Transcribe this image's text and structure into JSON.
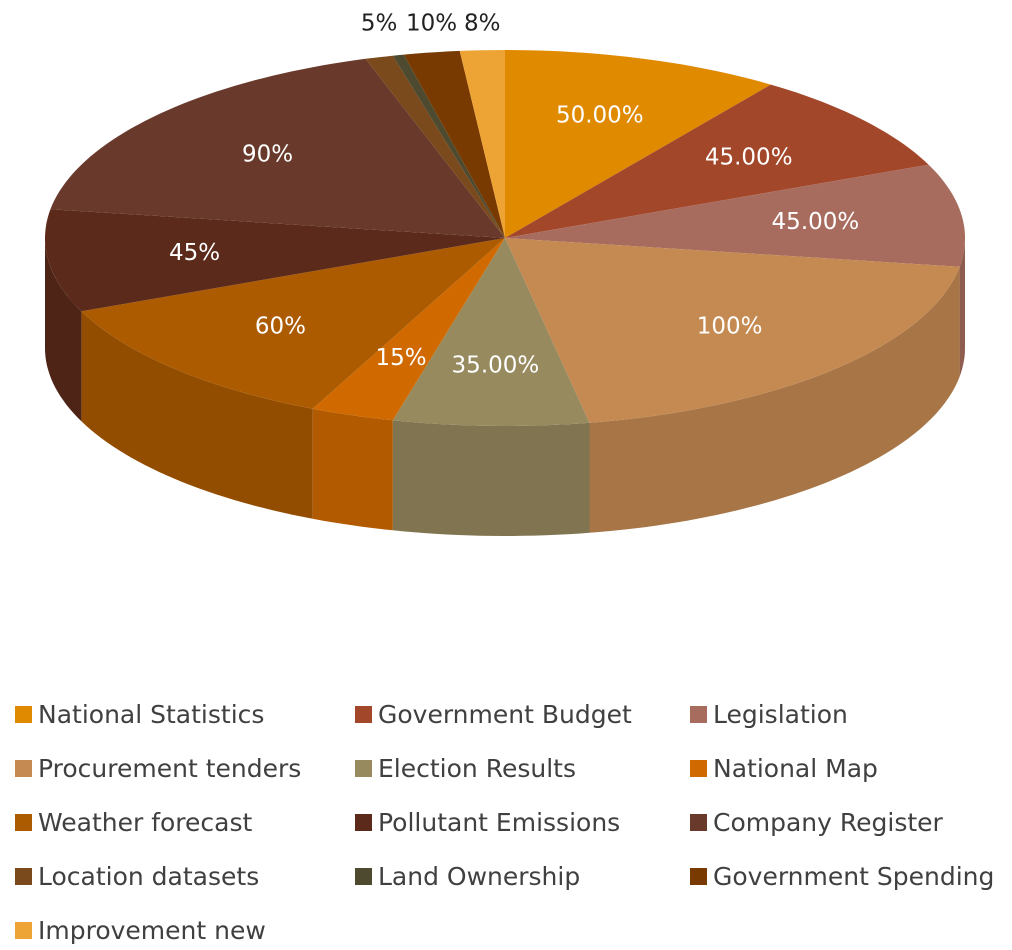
{
  "chart_data": {
    "type": "pie3d",
    "categories": [
      "National Statistics",
      "Government Budget",
      "Legislation",
      "Procurement tenders",
      "Election Results",
      "National Map",
      "Weather forecast",
      "Pollutant Emissions",
      "Company Register",
      "Location datasets",
      "Land Ownership",
      "Government Spending",
      "Improvement new"
    ],
    "values": [
      50,
      45,
      45,
      100,
      35,
      15,
      60,
      45,
      90,
      5,
      2,
      10,
      8
    ],
    "value_labels": [
      "50.00%",
      "45.00%",
      "45.00%",
      "100%",
      "35.00%",
      "15%",
      "60%",
      "45%",
      "90%",
      "5%",
      null,
      "10%",
      "8%"
    ],
    "colors": [
      "#e08a00",
      "#a3472b",
      "#a86c5e",
      "#c58a52",
      "#978a5e",
      "#d06a00",
      "#ad5b00",
      "#5c2a1a",
      "#693a2b",
      "#7a4a1c",
      "#4d4a30",
      "#783a00",
      "#eea434"
    ],
    "legend": "bottom"
  }
}
